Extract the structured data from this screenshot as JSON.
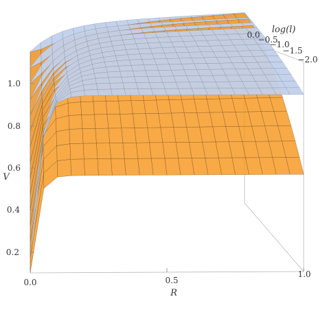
{
  "chart_data": {
    "type": "surface3d",
    "title": "",
    "xlabel": "R",
    "ylabel": "V",
    "zlabel": "log(l)",
    "xlim": [
      0,
      1
    ],
    "ylim": [
      0.1,
      1.1
    ],
    "zlim": [
      -2.0,
      0.0
    ],
    "x_ticks": [
      "0.0",
      "0.5",
      "1.0"
    ],
    "y_ticks": [
      "0.2",
      "0.4",
      "0.6",
      "0.8",
      "1.0"
    ],
    "z_ticks": [
      "0.0",
      "−0.5",
      "−1.0",
      "−1.5",
      "−2.0"
    ],
    "series": [
      {
        "color": "#f7971e",
        "function": "V = (1 - exp(-R / 10^logl)) / 10^(0.22 * logl)"
      },
      {
        "color": "#c2d0ea",
        "function": "V = 1 - 0.05 * logl - 0.4 * exp(-R / (0.07 * 10^(logl/2)))"
      }
    ],
    "grid": true,
    "legend": "none"
  }
}
